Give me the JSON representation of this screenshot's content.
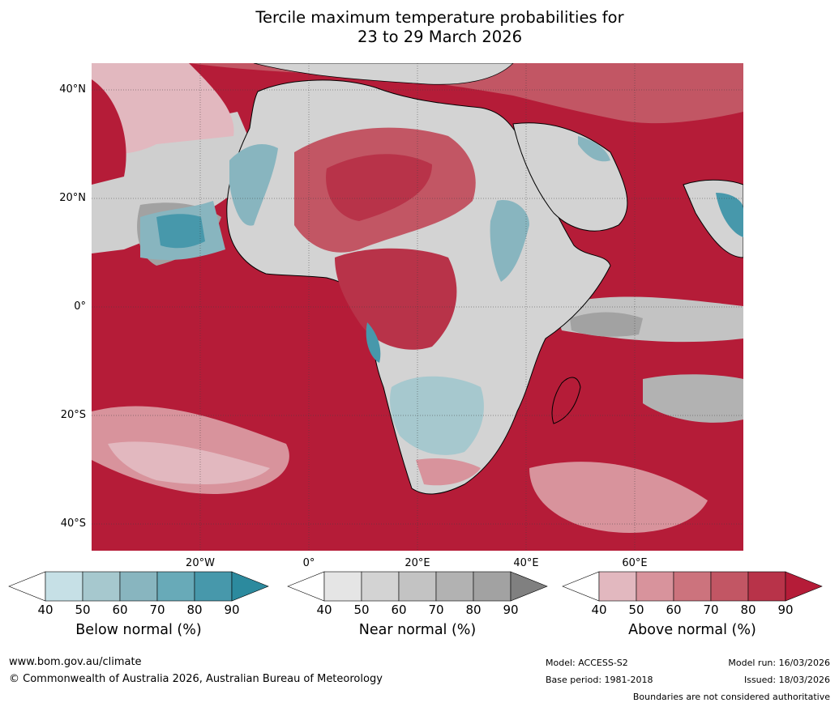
{
  "title": {
    "line1": "Tercile maximum temperature probabilities for",
    "line2": "23 to 29 March 2026"
  },
  "map": {
    "lat_labels": [
      "40°N",
      "20°N",
      "0°",
      "20°S",
      "40°S"
    ],
    "lon_labels": [
      "20°W",
      "0°",
      "20°E",
      "40°E",
      "60°E"
    ],
    "ocean_color": "#b51c38",
    "land_outline_color": "#000000",
    "border_color": "#808080"
  },
  "colorbars": [
    {
      "title": "Below normal (%)",
      "ticks": [
        "40",
        "50",
        "60",
        "70",
        "80",
        "90"
      ],
      "colors": [
        "#ffffff",
        "#c6e0e6",
        "#a6c8ce",
        "#88b5bf",
        "#68aab8",
        "#4798ab",
        "#2c8a9e"
      ]
    },
    {
      "title": "Near normal (%)",
      "ticks": [
        "40",
        "50",
        "60",
        "70",
        "80",
        "90"
      ],
      "colors": [
        "#ffffff",
        "#e5e5e5",
        "#d3d3d3",
        "#c3c3c3",
        "#b2b2b2",
        "#a2a2a2",
        "#808080"
      ]
    },
    {
      "title": "Above normal (%)",
      "ticks": [
        "40",
        "50",
        "60",
        "70",
        "80",
        "90"
      ],
      "colors": [
        "#ffffff",
        "#e2b8bf",
        "#d8939c",
        "#cc737d",
        "#c25664",
        "#b83349",
        "#b51c38"
      ]
    }
  ],
  "footer": {
    "website": "www.bom.gov.au/climate",
    "copyright": "© Commonwealth of Australia 2026, Australian Bureau of Meteorology",
    "model": "Model: ACCESS-S2",
    "base_period": "Base period: 1981-2018",
    "model_run": "Model run: 16/03/2026",
    "issued": "Issued: 18/03/2026",
    "disclaimer": "Boundaries are not considered authoritative"
  }
}
